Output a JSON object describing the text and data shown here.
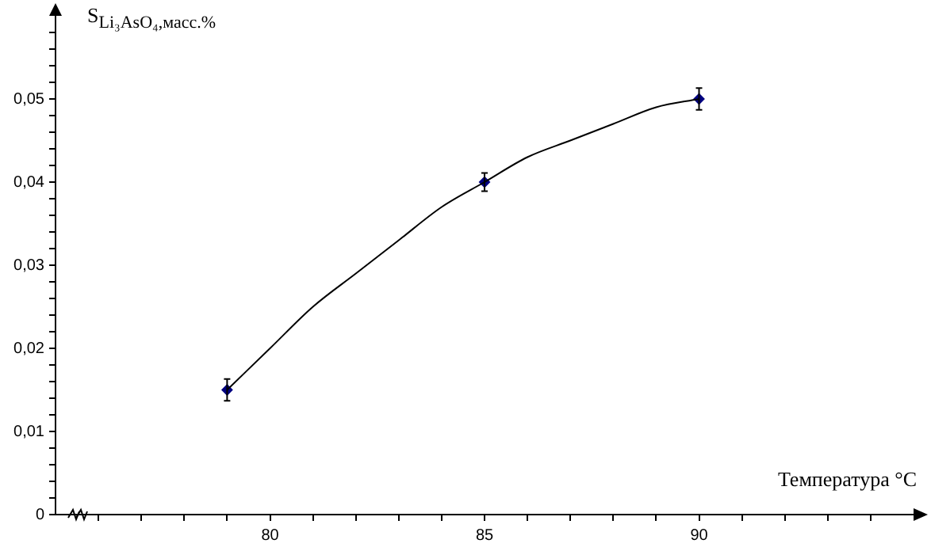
{
  "chart_data": {
    "type": "scatter",
    "xlabel": "Температура °C",
    "ylabel": "S$_{Li₃AsO₄,масс.%}$",
    "xlim": [
      75,
      95
    ],
    "xticks": [
      {
        "value": 76,
        "label": null
      },
      {
        "value": 77,
        "label": null
      },
      {
        "value": 78,
        "label": null
      },
      {
        "value": 79,
        "label": null
      },
      80,
      {
        "value": 81,
        "label": null
      },
      {
        "value": 82,
        "label": null
      },
      {
        "value": 83,
        "label": null
      },
      {
        "value": 84,
        "label": null
      },
      85,
      {
        "value": 86,
        "label": null
      },
      {
        "value": 87,
        "label": null
      },
      {
        "value": 88,
        "label": null
      },
      {
        "value": 89,
        "label": null
      },
      90,
      {
        "value": 91,
        "label": null
      },
      {
        "value": 92,
        "label": null
      },
      {
        "value": 93,
        "label": null
      },
      {
        "value": 94,
        "label": null
      }
    ],
    "ylim": [
      0,
      0.06
    ],
    "yticks": [
      {
        "value": 0,
        "label": "0"
      },
      {
        "value": 0.002,
        "label": null
      },
      {
        "value": 0.004,
        "label": null
      },
      {
        "value": 0.006,
        "label": null
      },
      {
        "value": 0.008,
        "label": null
      },
      {
        "value": 0.01,
        "label": "0,01"
      },
      {
        "value": 0.012,
        "label": null
      },
      {
        "value": 0.014,
        "label": null
      },
      {
        "value": 0.016,
        "label": null
      },
      {
        "value": 0.018,
        "label": null
      },
      {
        "value": 0.02,
        "label": "0,02"
      },
      {
        "value": 0.022,
        "label": null
      },
      {
        "value": 0.024,
        "label": null
      },
      {
        "value": 0.026,
        "label": null
      },
      {
        "value": 0.028,
        "label": null
      },
      {
        "value": 0.03,
        "label": "0,03"
      },
      {
        "value": 0.032,
        "label": null
      },
      {
        "value": 0.034,
        "label": null
      },
      {
        "value": 0.036,
        "label": null
      },
      {
        "value": 0.038,
        "label": null
      },
      {
        "value": 0.04,
        "label": "0,04"
      },
      {
        "value": 0.042,
        "label": null
      },
      {
        "value": 0.044,
        "label": null
      },
      {
        "value": 0.046,
        "label": null
      },
      {
        "value": 0.048,
        "label": null
      },
      {
        "value": 0.05,
        "label": "0,05"
      },
      {
        "value": 0.052,
        "label": null
      },
      {
        "value": 0.054,
        "label": null
      },
      {
        "value": 0.056,
        "label": null
      },
      {
        "value": 0.058,
        "label": null
      }
    ],
    "grid": false,
    "legend": false,
    "series": [
      {
        "type": "line",
        "color": "#000000",
        "marker": "none",
        "x": [
          79,
          80,
          81,
          82,
          83,
          84,
          85,
          86,
          87,
          88,
          89,
          90
        ],
        "values": [
          0.015,
          0.02,
          0.025,
          0.029,
          0.033,
          0.037,
          0.04,
          0.043,
          0.045,
          0.047,
          0.049,
          0.05
        ]
      },
      {
        "type": "scatter",
        "color": "#000080",
        "marker": "diamond",
        "x": [
          79,
          85,
          90
        ],
        "values": [
          0.015,
          0.04,
          0.05
        ],
        "errors": [
          0.0013,
          0.0011,
          0.0013
        ]
      }
    ]
  }
}
